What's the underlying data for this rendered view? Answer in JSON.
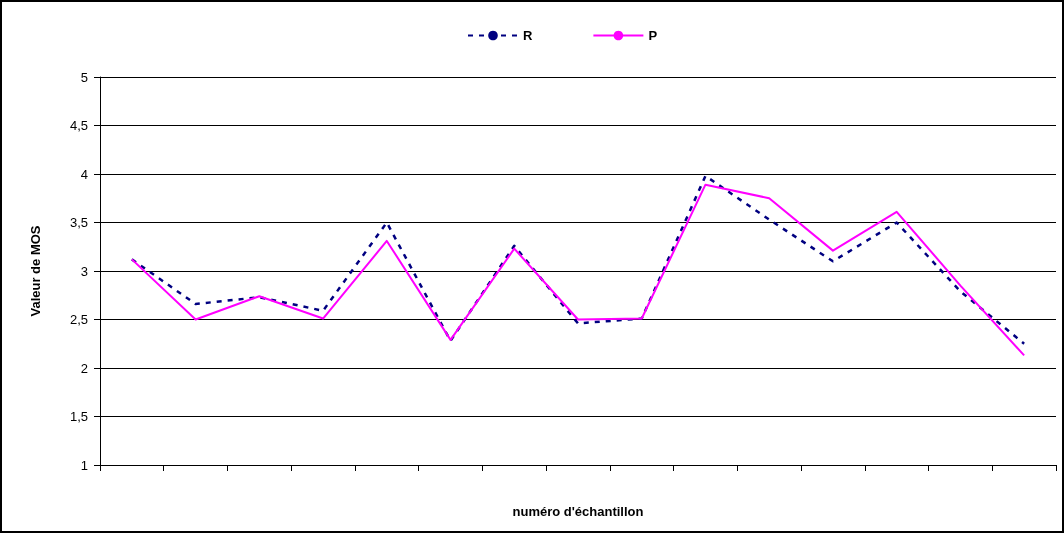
{
  "chart_data": {
    "type": "line",
    "ylabel": "Valeur de MOS",
    "xlabel": "numéro d'échantillon",
    "categories": [
      null,
      null,
      null,
      null,
      null,
      null,
      null,
      null,
      null,
      null,
      null,
      null,
      null,
      null,
      null
    ],
    "series": [
      {
        "name": "R",
        "color": "#000080",
        "line_style": "dashed",
        "values": [
          3.12,
          2.66,
          2.73,
          2.59,
          3.5,
          2.28,
          3.26,
          2.46,
          2.51,
          3.98,
          3.53,
          3.1,
          3.5,
          2.79,
          2.25
        ]
      },
      {
        "name": "P",
        "color": "#ff00ff",
        "line_style": "solid",
        "values": [
          3.12,
          2.5,
          2.74,
          2.51,
          3.31,
          2.29,
          3.23,
          2.5,
          2.51,
          3.89,
          3.75,
          3.21,
          3.61,
          2.85,
          2.13
        ]
      }
    ],
    "ylim": [
      1,
      5
    ],
    "yticks": [
      1,
      {
        "value": 1.5,
        "label": "1,5"
      },
      2,
      {
        "value": 2.5,
        "label": "2,5"
      },
      3,
      {
        "value": 3.5,
        "label": "3,5"
      },
      4,
      {
        "value": 4.5,
        "label": "4,5"
      },
      5
    ],
    "grid": "y",
    "legend": "top",
    "marker": "none"
  }
}
